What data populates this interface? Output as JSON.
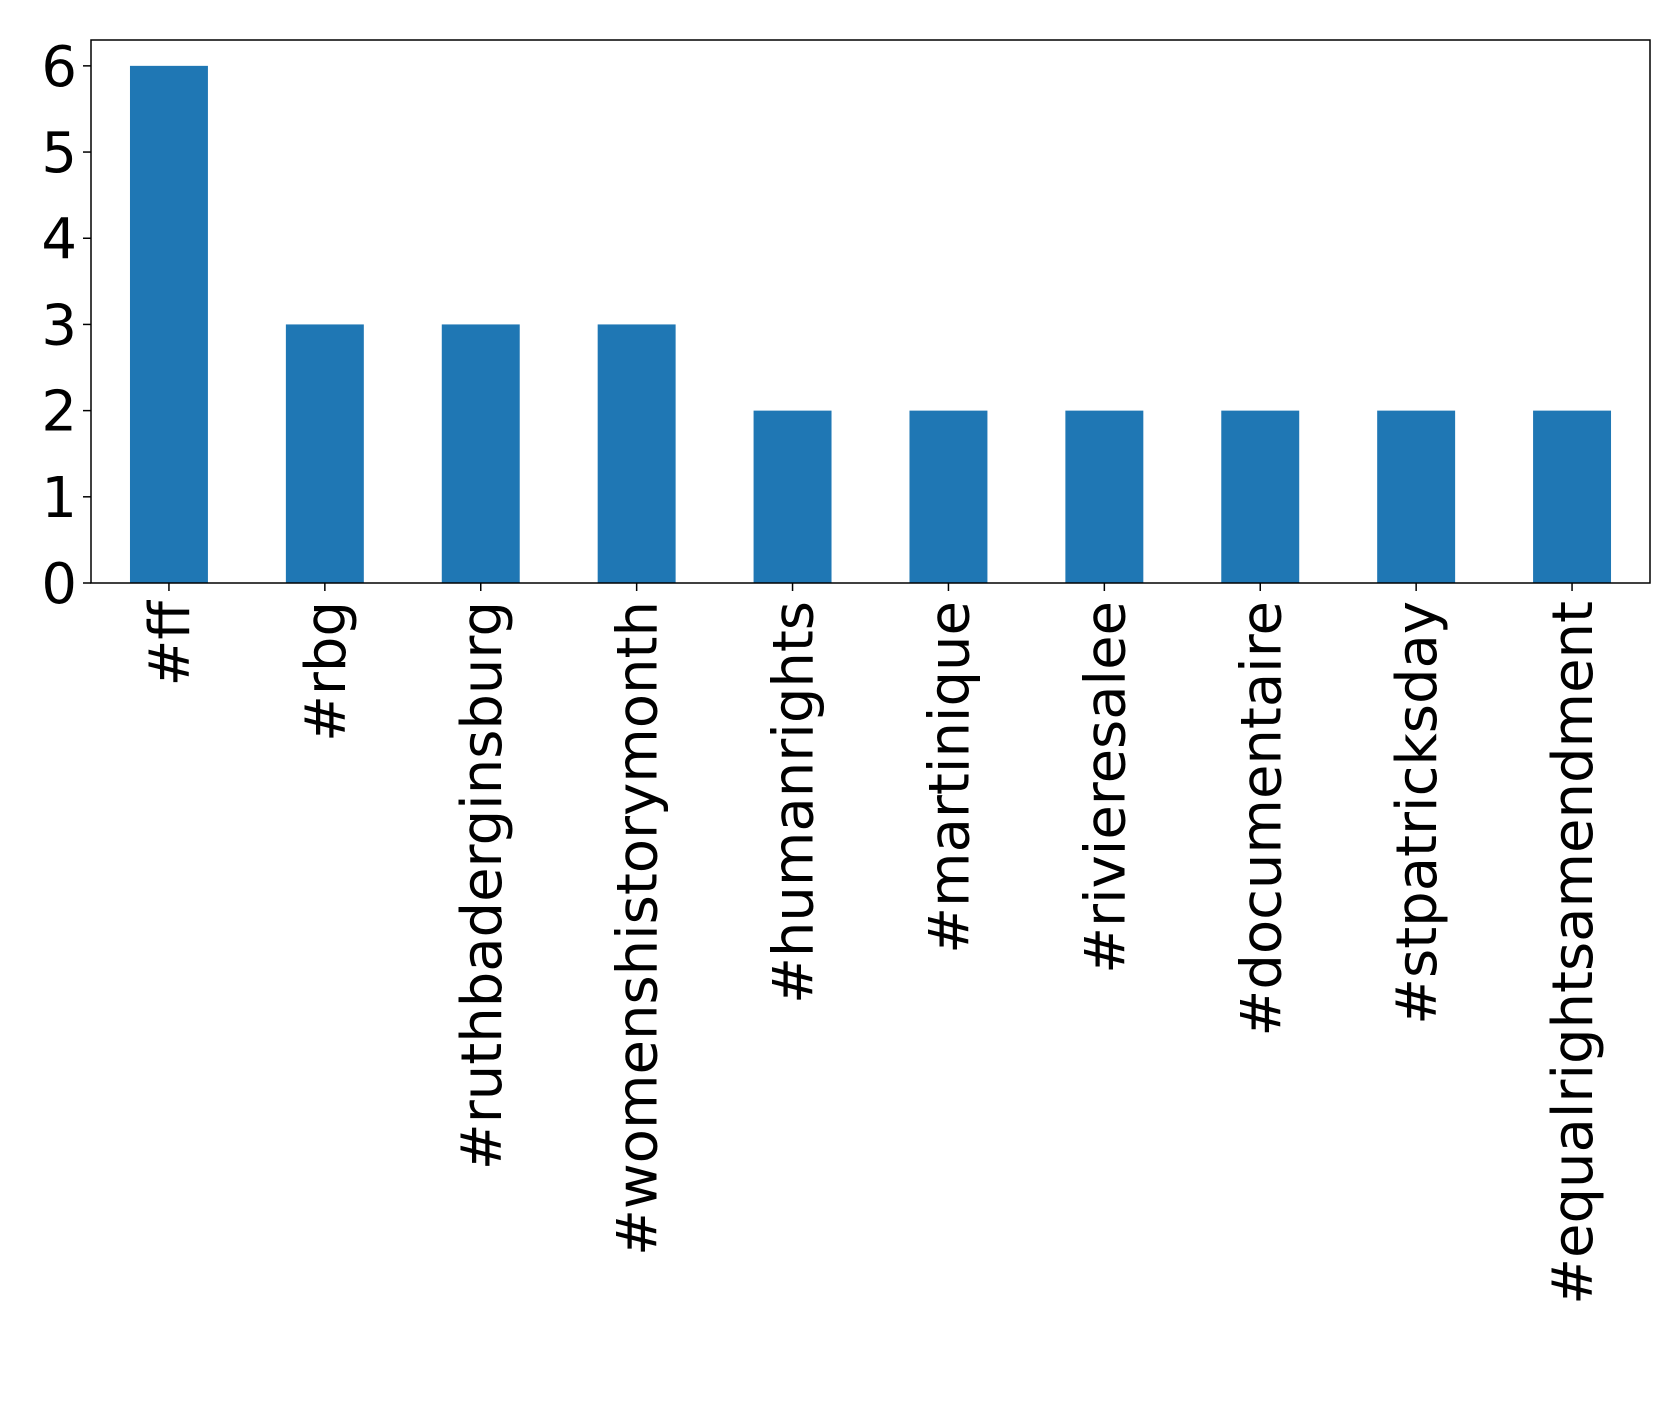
{
  "chart_data": {
    "type": "bar",
    "title": "",
    "xlabel": "",
    "ylabel": "",
    "categories": [
      "#ff",
      "#rbg",
      "#ruthbaderginsburg",
      "#womenshistorymonth",
      "#humanrights",
      "#martinique",
      "#rivieresalee",
      "#documentaire",
      "#stpatricksday",
      "#equalrightsamendment"
    ],
    "values": [
      6,
      3,
      3,
      3,
      2,
      2,
      2,
      2,
      2,
      2
    ],
    "ylim": [
      0,
      6.3
    ],
    "yticks": [
      0,
      1,
      2,
      3,
      4,
      5,
      6
    ],
    "grid": false,
    "legend": "none",
    "bar_color": "#1f77b4"
  }
}
